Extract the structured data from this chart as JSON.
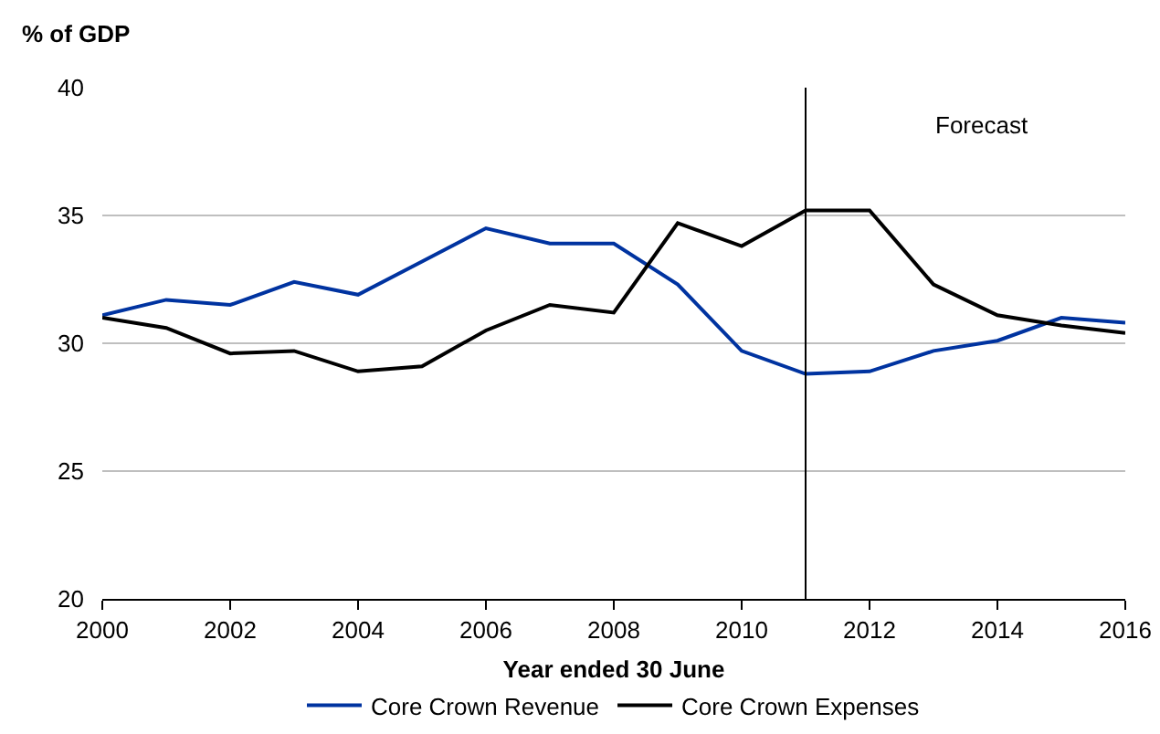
{
  "chart_data": {
    "type": "line",
    "ylabel": "% of GDP",
    "xlabel": "Year ended 30 June",
    "x": [
      2000,
      2001,
      2002,
      2003,
      2004,
      2005,
      2006,
      2007,
      2008,
      2009,
      2010,
      2011,
      2012,
      2013,
      2014,
      2015,
      2016
    ],
    "series": [
      {
        "name": "Core Crown Revenue",
        "color": "#0033a0",
        "values": [
          31.1,
          31.7,
          31.5,
          32.4,
          31.9,
          33.2,
          34.5,
          33.9,
          33.9,
          32.3,
          29.7,
          28.8,
          28.9,
          29.7,
          30.1,
          31.0,
          30.8
        ]
      },
      {
        "name": "Core Crown Expenses",
        "color": "#000000",
        "values": [
          31.0,
          30.6,
          29.6,
          29.7,
          28.9,
          29.1,
          30.5,
          31.5,
          31.2,
          34.7,
          33.8,
          35.2,
          35.2,
          32.3,
          31.1,
          30.7,
          30.4
        ]
      }
    ],
    "xlim": [
      2000,
      2016
    ],
    "xticks": [
      2000,
      2002,
      2004,
      2006,
      2008,
      2010,
      2012,
      2014,
      2016
    ],
    "ylim": [
      20,
      40
    ],
    "yticks": [
      20,
      25,
      30,
      35,
      40
    ],
    "ref_lines": [
      {
        "axis": "x",
        "value": 2011,
        "color": "#000000"
      }
    ],
    "annotations": [
      "Forecast"
    ],
    "grid": "y",
    "legend": "bottom",
    "marker": "none",
    "line_style": "solid"
  }
}
